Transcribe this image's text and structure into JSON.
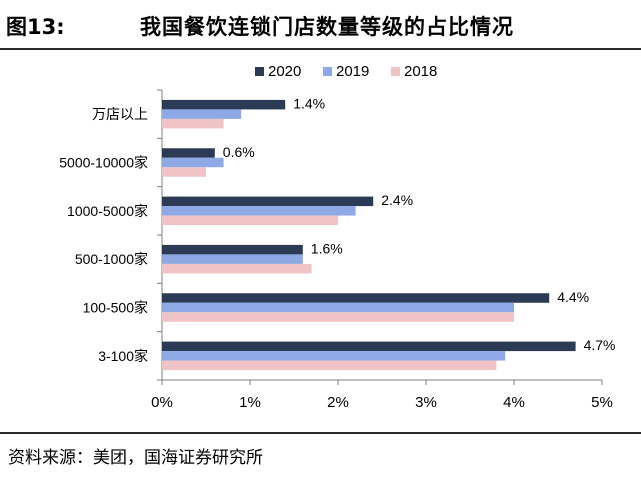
{
  "header": {
    "figure_number": "图13:",
    "title": "我国餐饮连锁门店数量等级的占比情况"
  },
  "footer": {
    "source": "资料来源：美团，国海证券研究所"
  },
  "colors": {
    "series_2020": "#2b3a55",
    "series_2019": "#8fa9e6",
    "series_2018": "#f0c4c6",
    "axis": "#7f7f7f"
  },
  "chart_data": {
    "type": "bar",
    "orientation": "horizontal",
    "categories": [
      "万店以上",
      "5000-10000家",
      "1000-5000家",
      "500-1000家",
      "100-500家",
      "3-100家"
    ],
    "series": [
      {
        "name": "2020",
        "values": [
          1.4,
          0.6,
          2.4,
          1.6,
          4.4,
          4.7
        ]
      },
      {
        "name": "2019",
        "values": [
          0.9,
          0.7,
          2.2,
          1.6,
          4.0,
          3.9
        ]
      },
      {
        "name": "2018",
        "values": [
          0.7,
          0.5,
          2.0,
          1.7,
          4.0,
          3.8
        ]
      }
    ],
    "data_labels": [
      "1.4%",
      "0.6%",
      "2.4%",
      "1.6%",
      "4.4%",
      "4.7%"
    ],
    "x_ticks": [
      "0%",
      "1%",
      "2%",
      "3%",
      "4%",
      "5%"
    ],
    "xlim": [
      0,
      5
    ],
    "unit": "%",
    "legend": [
      "2020",
      "2019",
      "2018"
    ],
    "legend_position": "top-center",
    "grid": false
  }
}
